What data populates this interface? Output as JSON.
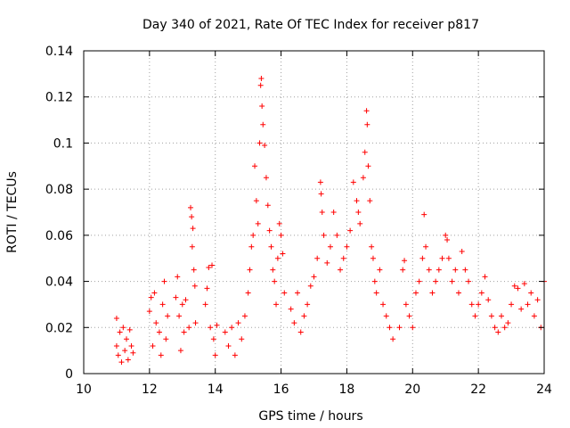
{
  "chart_data": {
    "type": "scatter",
    "title": "Day 340 of 2021, Rate Of TEC Index for receiver p817",
    "xlabel": "GPS time / hours",
    "ylabel": "ROTI / TECUs",
    "xlim": [
      10,
      24
    ],
    "ylim": [
      0,
      0.14
    ],
    "xticks": [
      10,
      12,
      14,
      16,
      18,
      20,
      22,
      24
    ],
    "yticks": [
      0,
      0.02,
      0.04,
      0.06,
      0.08,
      0.1,
      0.12,
      0.14
    ],
    "xtick_labels": [
      "10",
      "12",
      "14",
      "16",
      "18",
      "20",
      "22",
      "24"
    ],
    "ytick_labels": [
      "0",
      "0.02",
      "0.04",
      "0.06",
      "0.08",
      "0.1",
      "0.12",
      "0.14"
    ],
    "grid": true,
    "marker": "+",
    "color": "#ff0000",
    "series": [
      {
        "name": "ROTI",
        "points": [
          [
            11.0,
            0.024
          ],
          [
            11.0,
            0.012
          ],
          [
            11.05,
            0.008
          ],
          [
            11.1,
            0.018
          ],
          [
            11.15,
            0.005
          ],
          [
            11.2,
            0.02
          ],
          [
            11.25,
            0.01
          ],
          [
            11.3,
            0.015
          ],
          [
            11.35,
            0.006
          ],
          [
            11.4,
            0.019
          ],
          [
            11.45,
            0.012
          ],
          [
            11.5,
            0.009
          ],
          [
            12.0,
            0.027
          ],
          [
            12.05,
            0.033
          ],
          [
            12.1,
            0.012
          ],
          [
            12.15,
            0.035
          ],
          [
            12.2,
            0.022
          ],
          [
            12.3,
            0.018
          ],
          [
            12.35,
            0.008
          ],
          [
            12.4,
            0.03
          ],
          [
            12.45,
            0.04
          ],
          [
            12.5,
            0.015
          ],
          [
            12.55,
            0.025
          ],
          [
            12.8,
            0.033
          ],
          [
            12.85,
            0.042
          ],
          [
            12.9,
            0.025
          ],
          [
            12.95,
            0.01
          ],
          [
            13.0,
            0.03
          ],
          [
            13.05,
            0.018
          ],
          [
            13.1,
            0.032
          ],
          [
            13.2,
            0.02
          ],
          [
            13.25,
            0.072
          ],
          [
            13.28,
            0.068
          ],
          [
            13.3,
            0.055
          ],
          [
            13.32,
            0.063
          ],
          [
            13.35,
            0.045
          ],
          [
            13.38,
            0.038
          ],
          [
            13.4,
            0.022
          ],
          [
            13.7,
            0.03
          ],
          [
            13.75,
            0.037
          ],
          [
            13.8,
            0.046
          ],
          [
            13.85,
            0.02
          ],
          [
            13.9,
            0.047
          ],
          [
            13.95,
            0.015
          ],
          [
            14.0,
            0.008
          ],
          [
            14.05,
            0.021
          ],
          [
            14.3,
            0.018
          ],
          [
            14.4,
            0.012
          ],
          [
            14.5,
            0.02
          ],
          [
            14.6,
            0.008
          ],
          [
            14.7,
            0.022
          ],
          [
            14.8,
            0.015
          ],
          [
            14.9,
            0.025
          ],
          [
            15.0,
            0.035
          ],
          [
            15.05,
            0.045
          ],
          [
            15.1,
            0.055
          ],
          [
            15.15,
            0.06
          ],
          [
            15.2,
            0.09
          ],
          [
            15.25,
            0.075
          ],
          [
            15.3,
            0.065
          ],
          [
            15.35,
            0.1
          ],
          [
            15.38,
            0.125
          ],
          [
            15.4,
            0.128
          ],
          [
            15.42,
            0.116
          ],
          [
            15.45,
            0.108
          ],
          [
            15.5,
            0.099
          ],
          [
            15.55,
            0.085
          ],
          [
            15.6,
            0.073
          ],
          [
            15.65,
            0.062
          ],
          [
            15.7,
            0.055
          ],
          [
            15.75,
            0.045
          ],
          [
            15.8,
            0.04
          ],
          [
            15.85,
            0.03
          ],
          [
            15.9,
            0.05
          ],
          [
            15.95,
            0.065
          ],
          [
            16.0,
            0.06
          ],
          [
            16.05,
            0.052
          ],
          [
            16.1,
            0.035
          ],
          [
            16.3,
            0.028
          ],
          [
            16.4,
            0.022
          ],
          [
            16.5,
            0.035
          ],
          [
            16.6,
            0.018
          ],
          [
            16.7,
            0.025
          ],
          [
            16.8,
            0.03
          ],
          [
            16.9,
            0.038
          ],
          [
            17.0,
            0.042
          ],
          [
            17.1,
            0.05
          ],
          [
            17.2,
            0.083
          ],
          [
            17.22,
            0.078
          ],
          [
            17.25,
            0.07
          ],
          [
            17.3,
            0.06
          ],
          [
            17.4,
            0.048
          ],
          [
            17.5,
            0.055
          ],
          [
            17.6,
            0.07
          ],
          [
            17.7,
            0.06
          ],
          [
            17.8,
            0.045
          ],
          [
            17.9,
            0.05
          ],
          [
            18.0,
            0.055
          ],
          [
            18.1,
            0.062
          ],
          [
            18.2,
            0.083
          ],
          [
            18.3,
            0.075
          ],
          [
            18.35,
            0.07
          ],
          [
            18.4,
            0.065
          ],
          [
            18.5,
            0.085
          ],
          [
            18.55,
            0.096
          ],
          [
            18.6,
            0.114
          ],
          [
            18.62,
            0.108
          ],
          [
            18.65,
            0.09
          ],
          [
            18.7,
            0.075
          ],
          [
            18.75,
            0.055
          ],
          [
            18.8,
            0.05
          ],
          [
            18.85,
            0.04
          ],
          [
            18.9,
            0.035
          ],
          [
            19.0,
            0.045
          ],
          [
            19.1,
            0.03
          ],
          [
            19.2,
            0.025
          ],
          [
            19.3,
            0.02
          ],
          [
            19.4,
            0.015
          ],
          [
            19.6,
            0.02
          ],
          [
            19.7,
            0.045
          ],
          [
            19.75,
            0.049
          ],
          [
            19.8,
            0.03
          ],
          [
            19.9,
            0.025
          ],
          [
            20.0,
            0.02
          ],
          [
            20.1,
            0.035
          ],
          [
            20.2,
            0.04
          ],
          [
            20.3,
            0.05
          ],
          [
            20.35,
            0.069
          ],
          [
            20.4,
            0.055
          ],
          [
            20.5,
            0.045
          ],
          [
            20.6,
            0.035
          ],
          [
            20.7,
            0.04
          ],
          [
            20.8,
            0.045
          ],
          [
            20.9,
            0.05
          ],
          [
            21.0,
            0.06
          ],
          [
            21.05,
            0.058
          ],
          [
            21.1,
            0.05
          ],
          [
            21.2,
            0.04
          ],
          [
            21.3,
            0.045
          ],
          [
            21.4,
            0.035
          ],
          [
            21.5,
            0.053
          ],
          [
            21.6,
            0.045
          ],
          [
            21.7,
            0.04
          ],
          [
            21.8,
            0.03
          ],
          [
            21.9,
            0.025
          ],
          [
            22.0,
            0.03
          ],
          [
            22.1,
            0.035
          ],
          [
            22.2,
            0.042
          ],
          [
            22.3,
            0.032
          ],
          [
            22.4,
            0.025
          ],
          [
            22.5,
            0.02
          ],
          [
            22.6,
            0.018
          ],
          [
            22.7,
            0.025
          ],
          [
            22.8,
            0.02
          ],
          [
            22.9,
            0.022
          ],
          [
            23.0,
            0.03
          ],
          [
            23.1,
            0.038
          ],
          [
            23.2,
            0.037
          ],
          [
            23.3,
            0.028
          ],
          [
            23.4,
            0.039
          ],
          [
            23.5,
            0.03
          ],
          [
            23.6,
            0.035
          ],
          [
            23.7,
            0.025
          ],
          [
            23.8,
            0.032
          ],
          [
            23.9,
            0.02
          ],
          [
            24.0,
            0.04
          ]
        ]
      }
    ]
  }
}
